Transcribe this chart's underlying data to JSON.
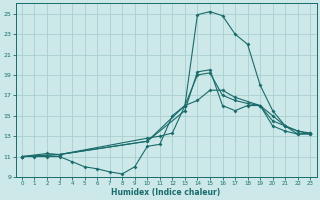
{
  "xlabel": "Humidex (Indice chaleur)",
  "bg_color": "#cce8e8",
  "grid_color": "#aacfcf",
  "line_color": "#1a6b6b",
  "xlim": [
    -0.5,
    23.5
  ],
  "ylim": [
    9,
    26
  ],
  "xticks": [
    0,
    1,
    2,
    3,
    4,
    5,
    6,
    7,
    8,
    9,
    10,
    11,
    12,
    13,
    14,
    15,
    16,
    17,
    18,
    19,
    20,
    21,
    22,
    23
  ],
  "yticks": [
    9,
    11,
    13,
    15,
    17,
    19,
    21,
    23,
    25
  ],
  "line1_x": [
    0,
    1,
    2,
    3,
    4,
    5,
    6,
    7,
    8,
    9,
    10,
    11,
    12,
    13,
    14,
    15,
    16,
    17,
    18,
    19,
    20,
    21,
    22,
    23
  ],
  "line1_y": [
    11,
    11,
    11,
    11,
    10.5,
    10,
    9.8,
    9.5,
    9.3,
    10,
    12,
    12.2,
    15,
    16,
    24.9,
    25.2,
    24.8,
    23,
    22,
    18,
    15.5,
    14,
    13.2,
    13.3
  ],
  "line2_x": [
    0,
    2,
    3,
    10,
    13,
    14,
    15,
    16,
    17,
    18,
    19,
    20,
    21,
    22,
    23
  ],
  "line2_y": [
    11,
    11.3,
    11.2,
    12.5,
    16,
    19,
    19.2,
    17,
    16.5,
    16.2,
    16,
    15,
    14,
    13.5,
    13.3
  ],
  "line3_x": [
    0,
    3,
    10,
    13,
    14,
    15,
    16,
    17,
    18,
    19,
    20,
    21,
    22,
    23
  ],
  "line3_y": [
    11,
    11.2,
    12.5,
    15.5,
    19.3,
    19.5,
    16,
    15.5,
    16,
    16,
    14,
    13.5,
    13.2,
    13.2
  ],
  "line4_x": [
    0,
    3,
    10,
    11,
    12,
    13,
    14,
    15,
    16,
    17,
    19,
    20,
    21,
    22,
    23
  ],
  "line4_y": [
    11,
    11.2,
    12.8,
    13,
    13.3,
    16,
    16.5,
    17.5,
    17.5,
    16.8,
    16,
    14.5,
    14,
    13.5,
    13.2
  ]
}
